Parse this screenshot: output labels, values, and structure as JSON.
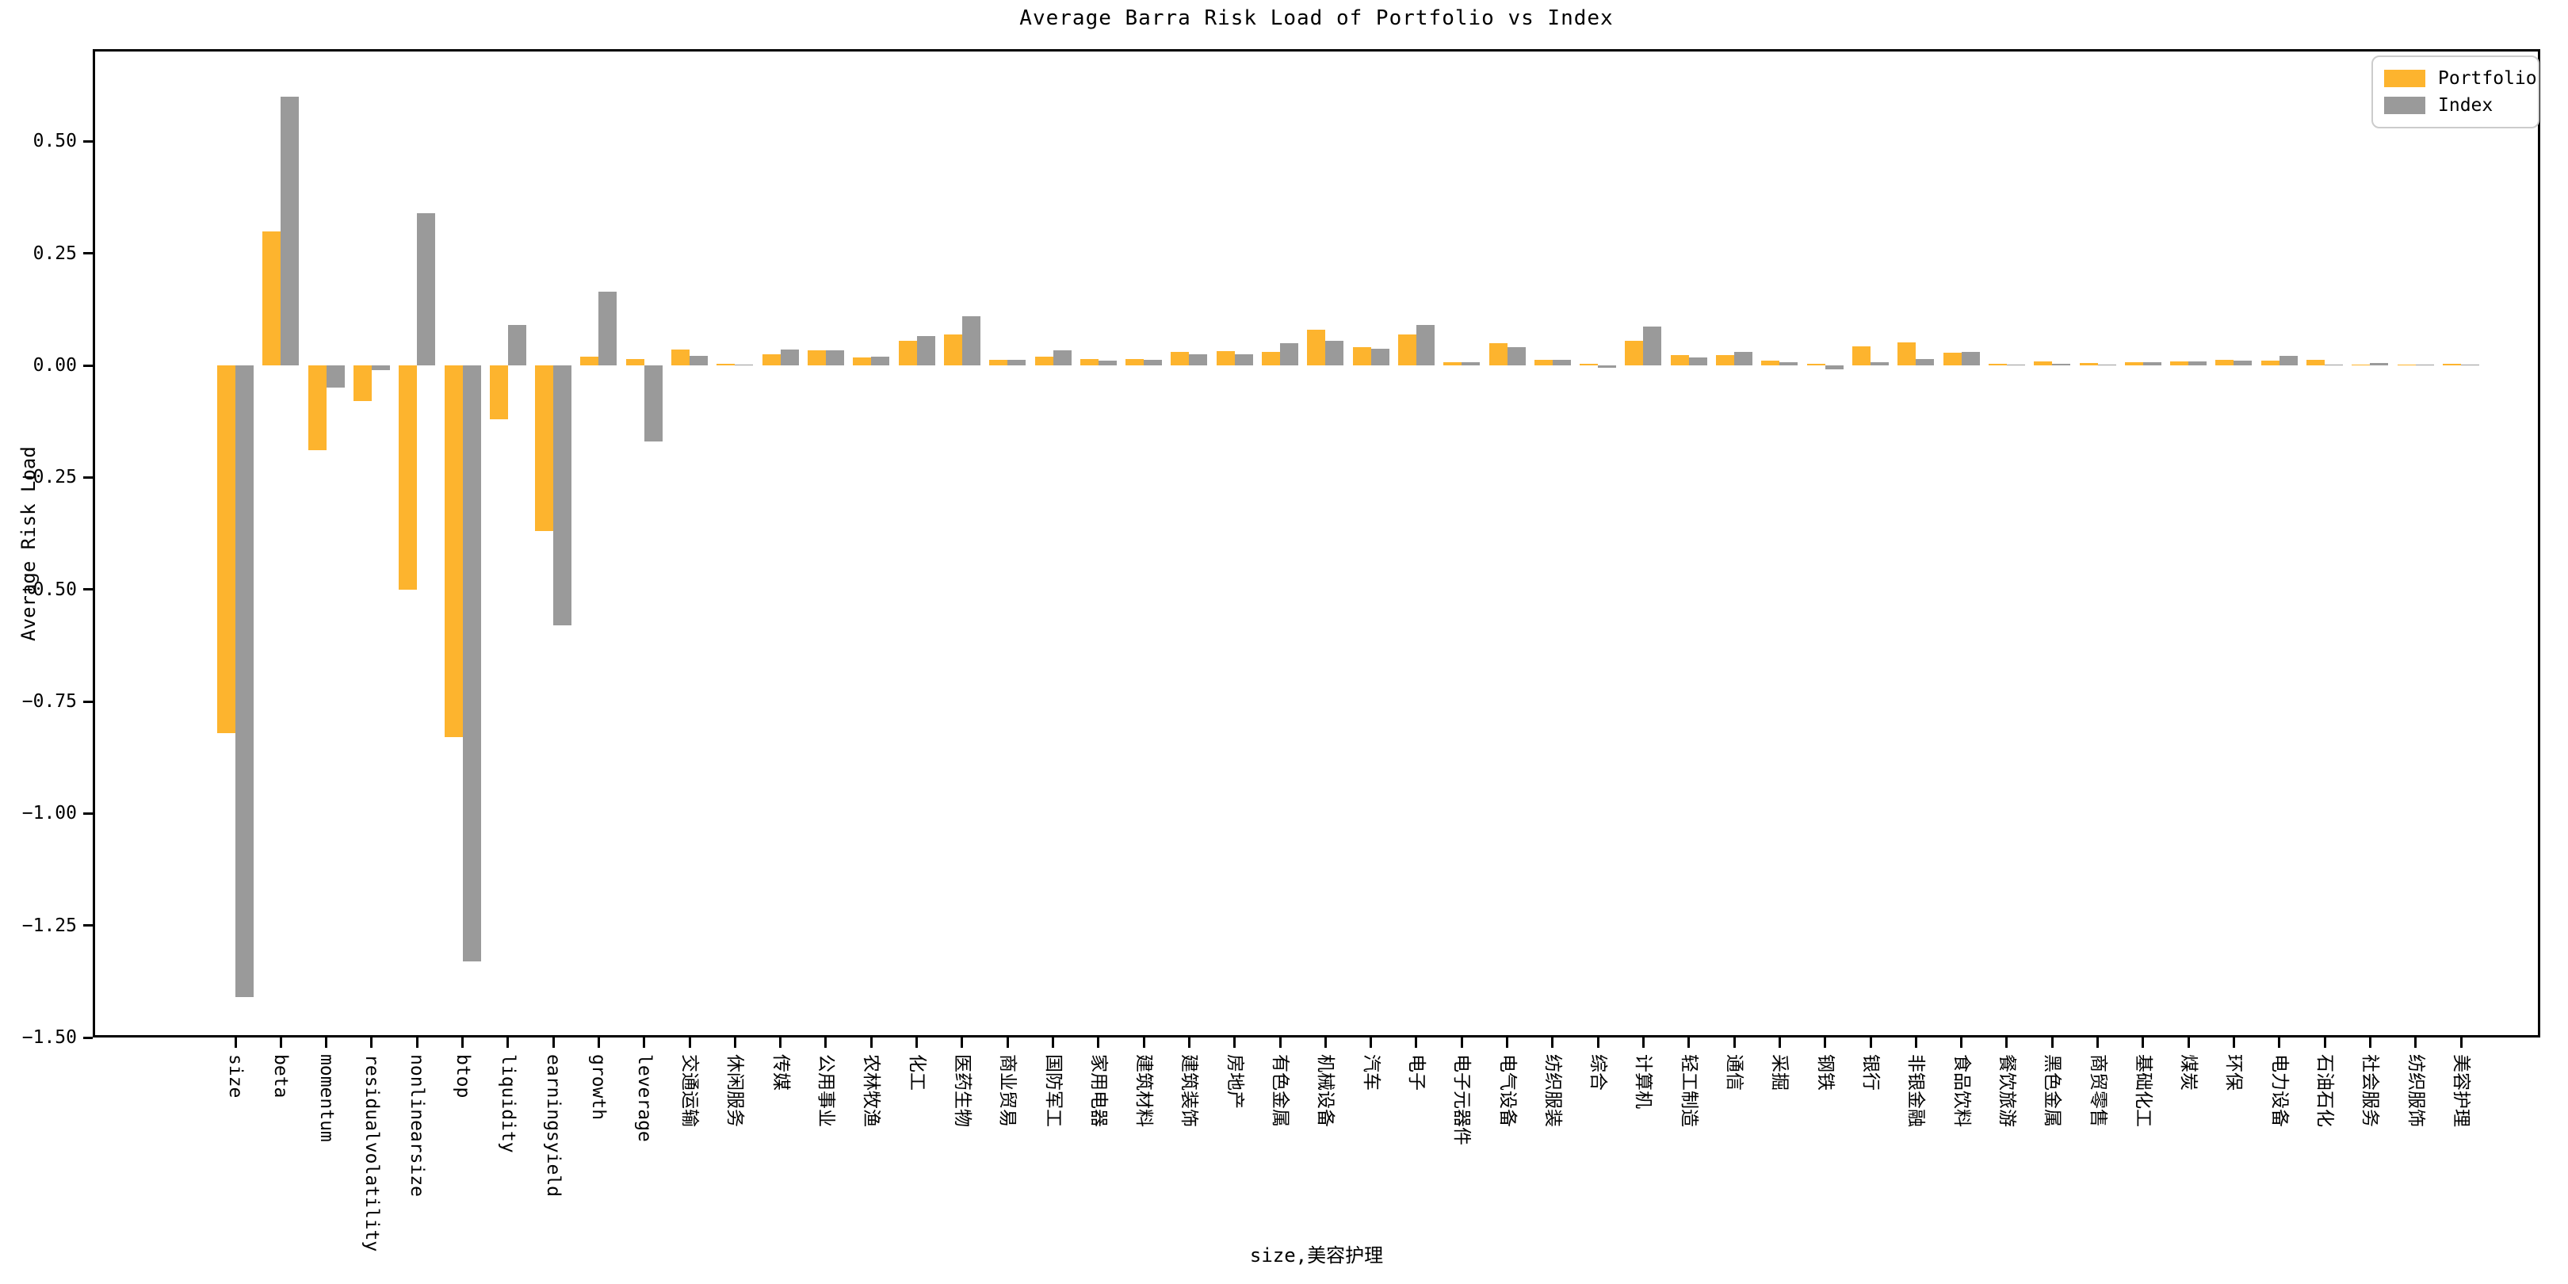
{
  "chart_data": {
    "type": "bar",
    "title": "Average Barra Risk Load of Portfolio vs Index",
    "xlabel": "size,美容护理",
    "ylabel": "Average Risk Load",
    "ylim": [
      -1.5,
      0.706
    ],
    "yticks": [
      0.5,
      0.25,
      0.0,
      -0.25,
      -0.5,
      -0.75,
      -1.0,
      -1.25,
      -1.5
    ],
    "grid": false,
    "legend_position": "upper right",
    "categories": [
      "size",
      "beta",
      "momentum",
      "residualvolatility",
      "nonlinearsize",
      "btop",
      "liquidity",
      "earningsyield",
      "growth",
      "leverage",
      "交通运输",
      "休闲服务",
      "传媒",
      "公用事业",
      "农林牧渔",
      "化工",
      "医药生物",
      "商业贸易",
      "国防军工",
      "家用电器",
      "建筑材料",
      "建筑装饰",
      "房地产",
      "有色金属",
      "机械设备",
      "汽车",
      "电子",
      "电子元器件",
      "电气设备",
      "纺织服装",
      "综合",
      "计算机",
      "轻工制造",
      "通信",
      "采掘",
      "钢铁",
      "银行",
      "非银金融",
      "食品饮料",
      "餐饮旅游",
      "黑色金属",
      "商贸零售",
      "基础化工",
      "煤炭",
      "环保",
      "电力设备",
      "石油石化",
      "社会服务",
      "纺织服饰",
      "美容护理"
    ],
    "series": [
      {
        "name": "Portfolio",
        "color": "#FDB42E",
        "values": [
          -0.82,
          0.3,
          -0.19,
          -0.08,
          -0.5,
          -0.83,
          -0.12,
          -0.37,
          0.02,
          0.015,
          0.035,
          0.004,
          0.025,
          0.033,
          0.017,
          0.055,
          0.07,
          0.012,
          0.02,
          0.015,
          0.015,
          0.03,
          0.032,
          0.03,
          0.08,
          0.04,
          0.07,
          0.008,
          0.05,
          0.012,
          0.003,
          0.055,
          0.024,
          0.023,
          0.01,
          0.004,
          0.043,
          0.052,
          0.028,
          0.003,
          0.009,
          0.005,
          0.007,
          0.009,
          0.013,
          0.01,
          0.012,
          0.001,
          0.001,
          0.004
        ]
      },
      {
        "name": "Index",
        "color": "#9A9A9A",
        "values": [
          -1.41,
          0.6,
          -0.05,
          -0.01,
          0.34,
          -1.33,
          0.09,
          -0.58,
          0.165,
          -0.17,
          0.022,
          0.002,
          0.035,
          0.033,
          0.02,
          0.065,
          0.11,
          0.012,
          0.033,
          0.01,
          0.013,
          0.025,
          0.025,
          0.05,
          0.055,
          0.038,
          0.09,
          0.008,
          0.04,
          0.012,
          -0.005,
          0.086,
          0.018,
          0.03,
          0.007,
          -0.008,
          0.008,
          0.014,
          0.03,
          0.001,
          0.004,
          0.002,
          0.008,
          0.009,
          0.01,
          0.021,
          0.002,
          0.005,
          0.001,
          0.001
        ]
      }
    ]
  }
}
